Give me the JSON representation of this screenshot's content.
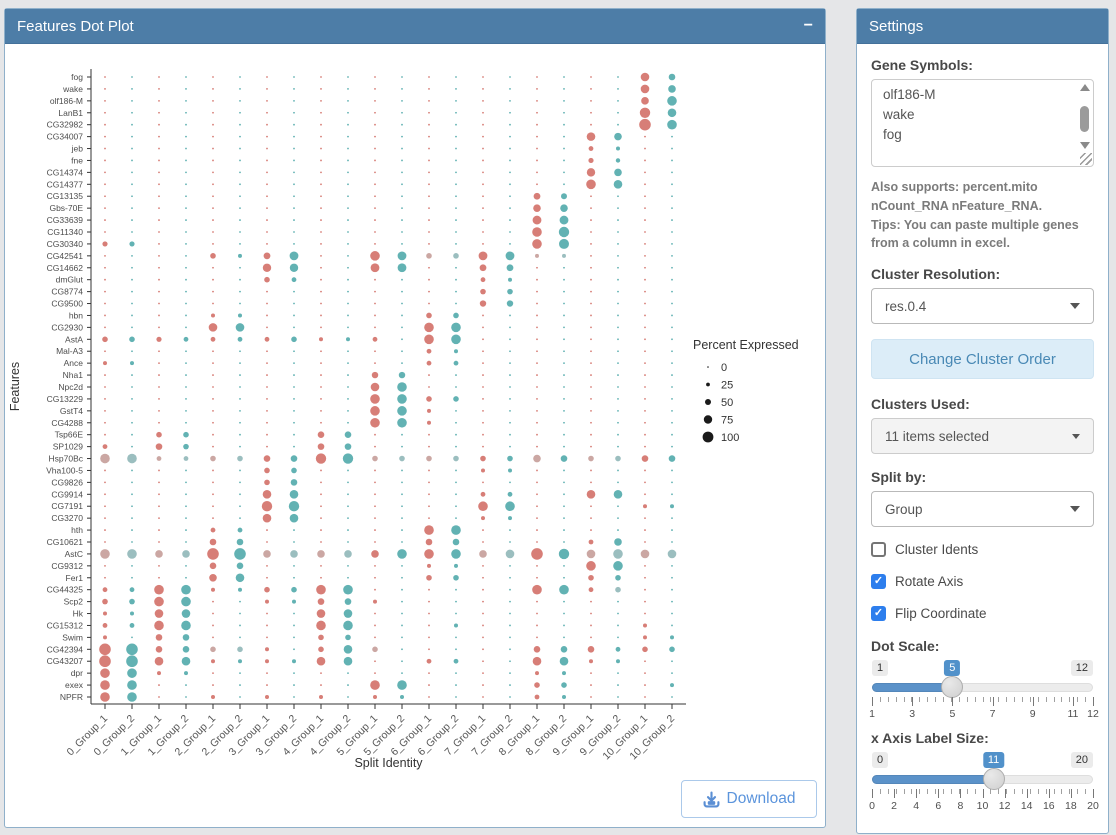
{
  "dotplot_panel": {
    "title": "Features Dot Plot",
    "collapse_label": "−",
    "download_label": "Download",
    "y_axis_title": "Features",
    "x_axis_title": "Split Identity",
    "legend": {
      "title": "Percent Expressed",
      "sizes": [
        "0",
        "25",
        "50",
        "75",
        "100"
      ]
    }
  },
  "chart_data": {
    "type": "scatter",
    "subtype": "split-feature-dot-plot",
    "title": "Features Dot Plot",
    "xlabel": "Split Identity",
    "ylabel": "Features",
    "legend_title": "Percent Expressed",
    "legend_percent_sizes": [
      0,
      25,
      50,
      75,
      100
    ],
    "x_categories": [
      "0_Group_1",
      "0_Group_2",
      "1_Group_1",
      "1_Group_2",
      "2_Group_1",
      "2_Group_2",
      "3_Group_1",
      "3_Group_2",
      "4_Group_1",
      "4_Group_2",
      "5_Group_1",
      "5_Group_2",
      "6_Group_1",
      "6_Group_2",
      "7_Group_1",
      "7_Group_2",
      "8_Group_1",
      "8_Group_2",
      "9_Group_1",
      "9_Group_2",
      "10_Group_1",
      "10_Group_2"
    ],
    "y_categories": [
      "fog",
      "wake",
      "olf186-M",
      "LanB1",
      "CG32982",
      "CG34007",
      "jeb",
      "fne",
      "CG14374",
      "CG14377",
      "CG13135",
      "Gbs-70E",
      "CG33639",
      "CG11340",
      "CG30340",
      "CG42541",
      "CG14662",
      "dmGlut",
      "CG8774",
      "CG9500",
      "hbn",
      "CG2930",
      "AstA",
      "Mal-A3",
      "Ance",
      "Nha1",
      "Npc2d",
      "CG13229",
      "GstT4",
      "CG4288",
      "Tsp66E",
      "SP1029",
      "Hsp70Bc",
      "Vha100-5",
      "CG9826",
      "CG9914",
      "CG7191",
      "CG3270",
      "hth",
      "CG10621",
      "AstC",
      "CG9312",
      "Fer1",
      "CG44325",
      "Scp2",
      "Hk",
      "CG15312",
      "Swim",
      "CG42394",
      "CG43207",
      "dpr",
      "exex",
      "NPFR"
    ],
    "colors": {
      "group1": "#d4736b",
      "group2": "#55abac",
      "muted1": "#c7a09b",
      "muted2": "#93b9ba",
      "legend_dot": "#1a1a1a"
    },
    "baseline_radius": 0.9,
    "highlights": [
      [
        [
          20,
          4.3
        ],
        [
          21,
          3.3
        ]
      ],
      [
        [
          20,
          4.3
        ],
        [
          21,
          3.8
        ]
      ],
      [
        [
          20,
          3.8
        ],
        [
          21,
          4.8
        ]
      ],
      [
        [
          20,
          5.2
        ],
        [
          21,
          4.3
        ]
      ],
      [
        [
          20,
          5.8
        ],
        [
          21,
          4.8
        ]
      ],
      [
        [
          18,
          4.3
        ],
        [
          19,
          3.8
        ]
      ],
      [
        [
          18,
          2.4
        ],
        [
          19,
          2.0
        ]
      ],
      [
        [
          18,
          2.6
        ],
        [
          19,
          2.2
        ]
      ],
      [
        [
          18,
          4.2
        ],
        [
          19,
          3.8
        ]
      ],
      [
        [
          18,
          4.8
        ],
        [
          19,
          4.3
        ]
      ],
      [
        [
          16,
          3.4
        ],
        [
          17,
          3.0
        ]
      ],
      [
        [
          16,
          3.8
        ],
        [
          17,
          3.8
        ]
      ],
      [
        [
          16,
          4.4
        ],
        [
          17,
          4.4
        ]
      ],
      [
        [
          16,
          4.8
        ],
        [
          17,
          5.2
        ]
      ],
      [
        [
          0,
          2.6
        ],
        [
          1,
          2.6
        ],
        [
          16,
          4.8
        ],
        [
          17,
          5.0
        ]
      ],
      [
        [
          4,
          2.8
        ],
        [
          5,
          2.0
        ],
        [
          6,
          3.4
        ],
        [
          7,
          4.4
        ],
        [
          10,
          4.8
        ],
        [
          11,
          4.4
        ],
        [
          12,
          2.8,
          1
        ],
        [
          13,
          2.8,
          1
        ],
        [
          14,
          4.4
        ],
        [
          15,
          4.4
        ],
        [
          16,
          2.0,
          1
        ],
        [
          17,
          2.0,
          1
        ]
      ],
      [
        [
          6,
          4.2
        ],
        [
          7,
          4.2
        ],
        [
          10,
          4.4
        ],
        [
          11,
          4.4
        ],
        [
          14,
          3.4
        ],
        [
          15,
          3.4
        ]
      ],
      [
        [
          6,
          2.8
        ],
        [
          7,
          2.4
        ],
        [
          14,
          2.4
        ],
        [
          15,
          2.0
        ]
      ],
      [
        [
          14,
          2.8
        ],
        [
          15,
          2.8
        ]
      ],
      [
        [
          14,
          3.2
        ],
        [
          15,
          3.2
        ]
      ],
      [
        [
          4,
          2.0
        ],
        [
          5,
          2.0
        ],
        [
          12,
          2.8
        ],
        [
          13,
          2.8
        ]
      ],
      [
        [
          4,
          4.3
        ],
        [
          5,
          4.3
        ],
        [
          12,
          4.8
        ],
        [
          13,
          4.8
        ]
      ],
      [
        [
          0,
          2.8
        ],
        [
          1,
          2.8
        ],
        [
          2,
          2.6
        ],
        [
          3,
          2.4
        ],
        [
          4,
          2.4
        ],
        [
          5,
          2.4
        ],
        [
          6,
          2.4
        ],
        [
          7,
          2.8
        ],
        [
          8,
          2.0
        ],
        [
          9,
          2.0
        ],
        [
          10,
          2.4
        ],
        [
          12,
          4.8
        ],
        [
          13,
          4.8
        ]
      ],
      [
        [
          12,
          2.4
        ],
        [
          13,
          2.0
        ]
      ],
      [
        [
          0,
          2.0
        ],
        [
          1,
          2.0
        ],
        [
          12,
          2.4
        ],
        [
          13,
          2.4
        ]
      ],
      [
        [
          10,
          3.2
        ],
        [
          11,
          3.2
        ]
      ],
      [
        [
          10,
          4.3
        ],
        [
          11,
          4.8
        ]
      ],
      [
        [
          10,
          4.8
        ],
        [
          11,
          4.8
        ],
        [
          12,
          2.8
        ],
        [
          13,
          2.8
        ]
      ],
      [
        [
          10,
          4.8
        ],
        [
          11,
          4.8
        ],
        [
          12,
          2.0
        ]
      ],
      [
        [
          10,
          4.8
        ],
        [
          11,
          4.8
        ],
        [
          12,
          2.0
        ]
      ],
      [
        [
          2,
          2.8
        ],
        [
          3,
          2.8
        ],
        [
          8,
          3.3
        ],
        [
          9,
          3.3
        ]
      ],
      [
        [
          0,
          2.4
        ],
        [
          2,
          3.3
        ],
        [
          3,
          2.8
        ],
        [
          8,
          3.3
        ],
        [
          9,
          3.3
        ]
      ],
      [
        [
          0,
          4.8,
          1
        ],
        [
          1,
          4.8,
          1
        ],
        [
          2,
          2.4,
          1
        ],
        [
          3,
          2.4,
          1
        ],
        [
          4,
          2.8,
          1
        ],
        [
          5,
          2.8,
          1
        ],
        [
          6,
          3.3
        ],
        [
          7,
          3.3
        ],
        [
          8,
          5.2
        ],
        [
          9,
          5.2
        ],
        [
          10,
          2.8,
          1
        ],
        [
          11,
          2.8,
          1
        ],
        [
          12,
          2.8,
          1
        ],
        [
          13,
          2.8,
          1
        ],
        [
          14,
          2.8
        ],
        [
          15,
          2.8
        ],
        [
          16,
          3.8,
          1
        ],
        [
          17,
          3.3
        ],
        [
          18,
          2.8,
          1
        ],
        [
          19,
          2.8,
          1
        ],
        [
          20,
          3.3
        ],
        [
          21,
          3.3
        ]
      ],
      [
        [
          6,
          2.8
        ],
        [
          7,
          2.8
        ],
        [
          14,
          2.0
        ],
        [
          15,
          2.0
        ]
      ],
      [
        [
          6,
          2.8
        ],
        [
          7,
          3.3
        ]
      ],
      [
        [
          6,
          4.3
        ],
        [
          7,
          4.3
        ],
        [
          14,
          2.4
        ],
        [
          15,
          2.4
        ],
        [
          18,
          4.3
        ],
        [
          19,
          4.3
        ]
      ],
      [
        [
          6,
          5.2
        ],
        [
          7,
          5.2
        ],
        [
          14,
          4.8
        ],
        [
          15,
          4.8
        ],
        [
          20,
          2.0
        ],
        [
          21,
          2.0
        ]
      ],
      [
        [
          6,
          4.3
        ],
        [
          7,
          4.3
        ],
        [
          14,
          2.0
        ],
        [
          15,
          2.0
        ]
      ],
      [
        [
          4,
          2.4
        ],
        [
          5,
          2.4
        ],
        [
          12,
          4.8
        ],
        [
          13,
          4.8
        ]
      ],
      [
        [
          4,
          3.3
        ],
        [
          5,
          3.3
        ],
        [
          12,
          3.3
        ],
        [
          13,
          3.3
        ],
        [
          18,
          2.4
        ],
        [
          19,
          3.8
        ]
      ],
      [
        [
          0,
          4.8,
          1
        ],
        [
          1,
          4.8,
          1
        ],
        [
          2,
          3.8,
          1
        ],
        [
          3,
          3.8,
          1
        ],
        [
          4,
          5.8
        ],
        [
          5,
          5.8
        ],
        [
          6,
          3.8,
          1
        ],
        [
          7,
          3.8,
          1
        ],
        [
          8,
          3.8,
          1
        ],
        [
          9,
          3.8,
          1
        ],
        [
          10,
          3.8
        ],
        [
          11,
          4.8
        ],
        [
          12,
          4.8
        ],
        [
          13,
          4.8
        ],
        [
          14,
          3.8,
          1
        ],
        [
          15,
          4.3,
          1
        ],
        [
          16,
          5.8
        ],
        [
          17,
          5.2
        ],
        [
          18,
          4.3,
          1
        ],
        [
          19,
          4.8,
          1
        ],
        [
          20,
          4.3,
          1
        ],
        [
          21,
          4.3,
          1
        ]
      ],
      [
        [
          4,
          3.3
        ],
        [
          5,
          3.3
        ],
        [
          12,
          2.0
        ],
        [
          13,
          2.0
        ],
        [
          18,
          4.8
        ],
        [
          19,
          4.8
        ]
      ],
      [
        [
          4,
          3.8
        ],
        [
          5,
          4.3
        ],
        [
          12,
          2.8
        ],
        [
          13,
          2.8
        ],
        [
          18,
          2.8
        ],
        [
          19,
          2.8
        ]
      ],
      [
        [
          0,
          2.4
        ],
        [
          1,
          2.4
        ],
        [
          2,
          4.8
        ],
        [
          3,
          4.8
        ],
        [
          4,
          2.0
        ],
        [
          5,
          2.0
        ],
        [
          6,
          2.8
        ],
        [
          7,
          2.8
        ],
        [
          8,
          4.8
        ],
        [
          9,
          4.8
        ],
        [
          16,
          4.8
        ],
        [
          17,
          4.8
        ],
        [
          18,
          2.4
        ],
        [
          19,
          2.8,
          1
        ]
      ],
      [
        [
          0,
          2.8
        ],
        [
          1,
          2.8
        ],
        [
          2,
          4.8
        ],
        [
          3,
          4.8
        ],
        [
          6,
          2.0
        ],
        [
          7,
          2.0
        ],
        [
          8,
          3.3
        ],
        [
          9,
          3.3
        ],
        [
          10,
          2.0
        ]
      ],
      [
        [
          0,
          2.0
        ],
        [
          1,
          2.0
        ],
        [
          2,
          4.3
        ],
        [
          3,
          4.3
        ],
        [
          8,
          4.3
        ],
        [
          9,
          4.3
        ]
      ],
      [
        [
          0,
          2.4
        ],
        [
          1,
          2.4
        ],
        [
          2,
          4.8
        ],
        [
          3,
          4.8
        ],
        [
          8,
          4.8
        ],
        [
          9,
          4.8
        ],
        [
          13,
          2.0
        ],
        [
          20,
          2.0
        ]
      ],
      [
        [
          0,
          2.0
        ],
        [
          2,
          3.3
        ],
        [
          3,
          3.3
        ],
        [
          8,
          2.8
        ],
        [
          9,
          2.8
        ],
        [
          20,
          2.0
        ],
        [
          21,
          2.0
        ]
      ],
      [
        [
          0,
          5.8
        ],
        [
          1,
          5.8
        ],
        [
          2,
          3.3
        ],
        [
          3,
          3.3
        ],
        [
          4,
          2.8,
          1
        ],
        [
          5,
          2.8,
          1
        ],
        [
          6,
          2.0
        ],
        [
          8,
          2.8
        ],
        [
          9,
          4.3
        ],
        [
          10,
          2.8,
          1
        ],
        [
          16,
          3.3
        ],
        [
          17,
          3.3
        ],
        [
          18,
          3.3
        ],
        [
          19,
          2.4
        ],
        [
          20,
          2.8
        ],
        [
          21,
          2.8
        ]
      ],
      [
        [
          0,
          5.8
        ],
        [
          1,
          5.8
        ],
        [
          2,
          4.3
        ],
        [
          3,
          4.3
        ],
        [
          4,
          2.0
        ],
        [
          5,
          2.0
        ],
        [
          6,
          2.0
        ],
        [
          7,
          2.0
        ],
        [
          8,
          4.3
        ],
        [
          9,
          4.3
        ],
        [
          12,
          2.4
        ],
        [
          13,
          2.4
        ],
        [
          16,
          4.3
        ],
        [
          17,
          4.3
        ],
        [
          18,
          2.0
        ],
        [
          19,
          2.0
        ]
      ],
      [
        [
          0,
          4.8
        ],
        [
          1,
          4.8
        ],
        [
          2,
          2.0
        ],
        [
          3,
          2.0
        ],
        [
          16,
          2.0
        ],
        [
          17,
          2.0
        ]
      ],
      [
        [
          0,
          4.8
        ],
        [
          1,
          4.8
        ],
        [
          10,
          4.8
        ],
        [
          11,
          4.8
        ],
        [
          16,
          2.8
        ],
        [
          17,
          2.8
        ],
        [
          21,
          2.0
        ]
      ],
      [
        [
          0,
          4.8
        ],
        [
          1,
          4.8
        ],
        [
          4,
          2.0
        ],
        [
          6,
          2.0
        ],
        [
          8,
          2.0
        ],
        [
          10,
          2.0
        ],
        [
          11,
          2.0
        ],
        [
          16,
          2.4
        ],
        [
          17,
          2.0
        ]
      ]
    ]
  },
  "settings_panel": {
    "title": "Settings",
    "gene_symbols": {
      "label": "Gene Symbols:",
      "lines": [
        "olf186-M",
        "wake",
        "fog"
      ]
    },
    "help1": "Also supports: percent.mito nCount_RNA nFeature_RNA.",
    "help2": "Tips: You can paste multiple genes from a column in excel.",
    "cluster_resolution": {
      "label": "Cluster Resolution:",
      "value": "res.0.4"
    },
    "change_order_button": "Change Cluster Order",
    "clusters_used": {
      "label": "Clusters Used:",
      "value": "11 items selected"
    },
    "split_by": {
      "label": "Split by:",
      "value": "Group"
    },
    "checkboxes": [
      {
        "label": "Cluster Idents",
        "checked": false
      },
      {
        "label": "Rotate Axis",
        "checked": true
      },
      {
        "label": "Flip Coordinate",
        "checked": true
      }
    ],
    "dot_scale": {
      "label": "Dot Scale:",
      "min": 1,
      "max": 12,
      "value": 5,
      "ticks": [
        1,
        3,
        5,
        7,
        9,
        11,
        12
      ]
    },
    "x_axis_label_size": {
      "label": "x Axis Label Size:",
      "min": 0,
      "max": 20,
      "value": 11,
      "ticks": [
        0,
        2,
        4,
        6,
        8,
        10,
        12,
        14,
        16,
        18,
        20
      ]
    }
  }
}
